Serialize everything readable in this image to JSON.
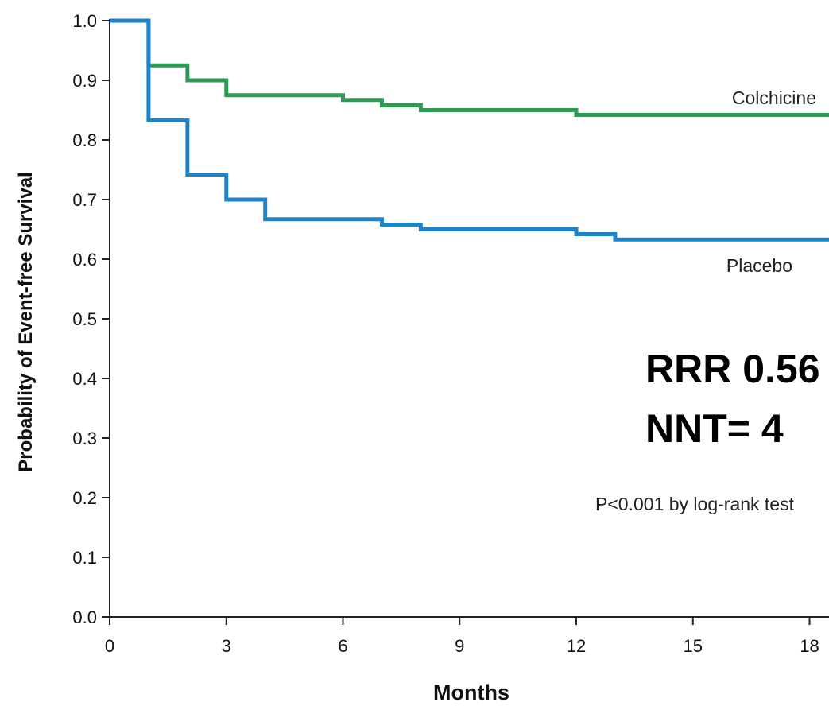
{
  "chart_data": {
    "type": "line",
    "step": true,
    "xlabel": "Months",
    "ylabel": "Probability of Event-free Survival",
    "xlim": [
      0,
      18.5
    ],
    "ylim": [
      0.0,
      1.0
    ],
    "xticks": [
      0,
      3,
      6,
      9,
      12,
      15,
      18
    ],
    "xtick_labels": [
      "0",
      "3",
      "6",
      "9",
      "12",
      "15",
      "18"
    ],
    "yticks": [
      0.0,
      0.1,
      0.2,
      0.3,
      0.4,
      0.5,
      0.6,
      0.7,
      0.8,
      0.9,
      1.0
    ],
    "ytick_labels": [
      "0.0",
      "0.1",
      "0.2",
      "0.3",
      "0.4",
      "0.5",
      "0.6",
      "0.7",
      "0.8",
      "0.9",
      "1.0"
    ],
    "grid": false,
    "series": [
      {
        "name": "Colchicine",
        "color": "#2e9a55",
        "x": [
          0,
          1,
          2,
          3,
          6,
          7,
          8,
          12,
          18.5
        ],
        "y": [
          1.0,
          0.925,
          0.9,
          0.875,
          0.867,
          0.858,
          0.85,
          0.842,
          0.842
        ]
      },
      {
        "name": "Placebo",
        "color": "#1f83c9",
        "x": [
          0,
          1,
          2,
          3,
          4,
          7,
          8,
          12,
          13,
          18.5
        ],
        "y": [
          1.0,
          0.833,
          0.742,
          0.7,
          0.667,
          0.658,
          0.65,
          0.642,
          0.633,
          0.633
        ]
      }
    ],
    "annotations": {
      "rrr": "RRR 0.56",
      "nnt": "NNT= 4",
      "pvalue": "P<0.001 by log-rank test"
    }
  }
}
